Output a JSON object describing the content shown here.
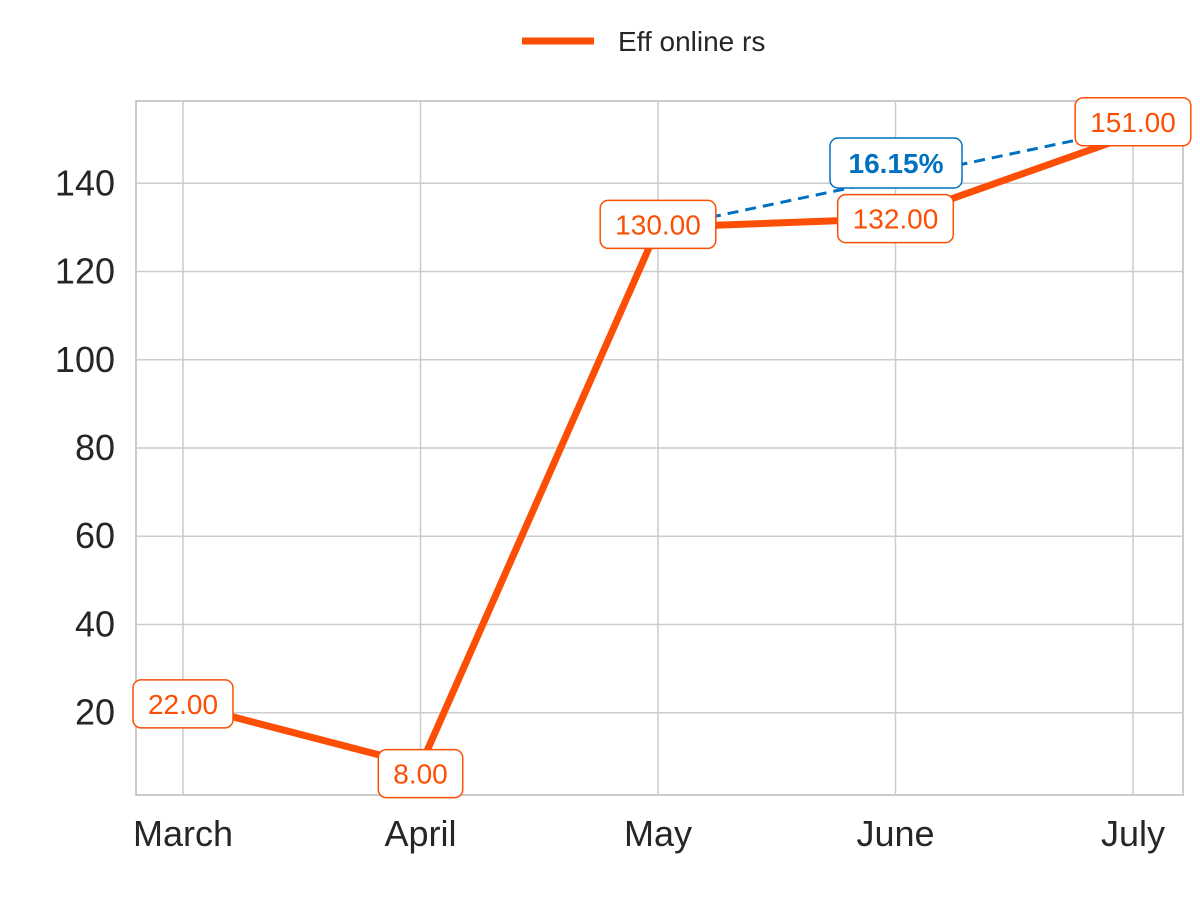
{
  "chart_data": {
    "type": "line",
    "categories": [
      "March",
      "April",
      "May",
      "June",
      "July"
    ],
    "series": [
      {
        "name": "Eff online rs",
        "values": [
          22,
          8,
          130,
          132,
          151
        ],
        "data_labels": [
          "22.00",
          "8.00",
          "130.00",
          "132.00",
          "151.00"
        ],
        "color": "#fc4f05"
      }
    ],
    "annotations": [
      {
        "text": "16.15%",
        "from": "May",
        "to": "July",
        "from_value": 130,
        "to_value": 151,
        "style": "dashed",
        "color": "#0071c1"
      }
    ],
    "yticks": [
      20,
      40,
      60,
      80,
      100,
      120,
      140
    ],
    "ytick_labels": [
      "20",
      "40",
      "60",
      "80",
      "100",
      "120",
      "140"
    ],
    "ylim": [
      1.35,
      158.65
    ],
    "title": "",
    "xlabel": "",
    "ylabel": "",
    "grid": true,
    "legend_position": "top-center"
  },
  "colors": {
    "grid": "#cccccc",
    "axis": "#cccccc",
    "text": "#262626",
    "series": "#fc4f05",
    "annotation": "#0071c1"
  }
}
